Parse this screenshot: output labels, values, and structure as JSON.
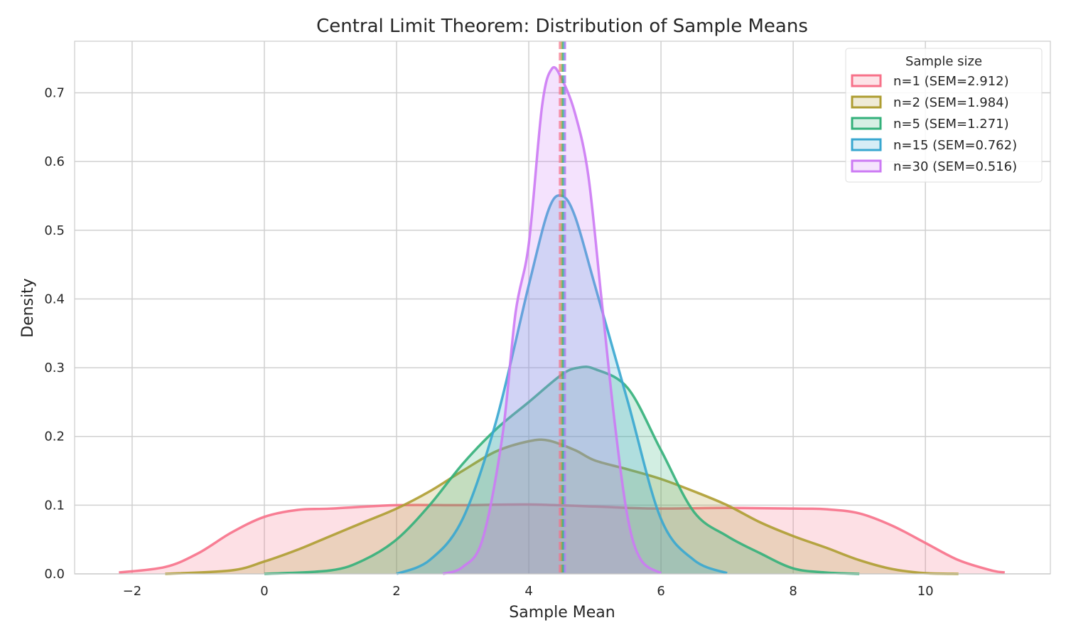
{
  "chart_data": {
    "type": "area",
    "title": "Central Limit Theorem: Distribution of Sample Means",
    "xlabel": "Sample Mean",
    "ylabel": "Density",
    "xlim": [
      -2.87,
      11.89
    ],
    "ylim": [
      0,
      0.775
    ],
    "xticks": [
      -2,
      0,
      2,
      4,
      6,
      8,
      10
    ],
    "xtick_labels": [
      "−2",
      "0",
      "2",
      "4",
      "6",
      "8",
      "10"
    ],
    "yticks": [
      0,
      0.1,
      0.2,
      0.3,
      0.4,
      0.5,
      0.6,
      0.7
    ],
    "ytick_labels": [
      "0.0",
      "0.1",
      "0.2",
      "0.3",
      "0.4",
      "0.5",
      "0.6",
      "0.7"
    ],
    "grid": true,
    "legend": {
      "title": "Sample size",
      "placement": "top-right"
    },
    "series": [
      {
        "name": "n=1 (SEM=2.912)",
        "color": "#f77189",
        "mean": 4.47,
        "x": [
          -2.2,
          -1.5,
          -1,
          -0.5,
          0,
          0.5,
          1,
          2,
          3,
          4,
          5,
          5.5,
          6,
          7,
          8,
          8.5,
          9,
          9.5,
          10,
          10.5,
          11,
          11.2
        ],
        "y": [
          0.002,
          0.01,
          0.03,
          0.06,
          0.083,
          0.093,
          0.095,
          0.1,
          0.1,
          0.101,
          0.098,
          0.096,
          0.095,
          0.096,
          0.095,
          0.094,
          0.088,
          0.07,
          0.045,
          0.02,
          0.005,
          0.002
        ]
      },
      {
        "name": "n=2 (SEM=1.984)",
        "color": "#ae9d31",
        "mean": 4.5,
        "x": [
          -1.5,
          -0.5,
          0,
          0.5,
          1,
          1.5,
          2,
          2.5,
          3,
          3.5,
          4,
          4.3,
          4.7,
          5,
          5.5,
          6,
          6.5,
          7,
          7.5,
          8,
          8.5,
          9,
          9.5,
          10,
          10.5
        ],
        "y": [
          0,
          0.005,
          0.018,
          0.035,
          0.055,
          0.075,
          0.095,
          0.12,
          0.15,
          0.178,
          0.193,
          0.194,
          0.18,
          0.165,
          0.152,
          0.138,
          0.12,
          0.1,
          0.075,
          0.055,
          0.038,
          0.02,
          0.007,
          0.001,
          0
        ]
      },
      {
        "name": "n=5 (SEM=1.271)",
        "color": "#33b07a",
        "mean": 4.52,
        "x": [
          0,
          1,
          1.5,
          2,
          2.5,
          3,
          3.5,
          4,
          4.5,
          4.75,
          5,
          5.5,
          6,
          6.5,
          7,
          7.5,
          8,
          8.5,
          9
        ],
        "y": [
          0,
          0.005,
          0.02,
          0.05,
          0.1,
          0.16,
          0.21,
          0.25,
          0.29,
          0.3,
          0.298,
          0.27,
          0.18,
          0.09,
          0.055,
          0.03,
          0.008,
          0.002,
          0
        ]
      },
      {
        "name": "n=15 (SEM=0.762)",
        "color": "#38a7d0",
        "mean": 4.54,
        "x": [
          2,
          2.5,
          3,
          3.5,
          4,
          4.3,
          4.5,
          4.7,
          5,
          5.5,
          6,
          6.5,
          7
        ],
        "y": [
          0,
          0.02,
          0.08,
          0.22,
          0.42,
          0.53,
          0.55,
          0.52,
          0.42,
          0.25,
          0.08,
          0.02,
          0.001
        ]
      },
      {
        "name": "n=30 (SEM=0.516)",
        "color": "#cc7af4",
        "mean": 4.55,
        "x": [
          2.7,
          3,
          3.3,
          3.6,
          3.8,
          4,
          4.2,
          4.35,
          4.5,
          4.7,
          4.9,
          5.1,
          5.3,
          5.5,
          5.7,
          6
        ],
        "y": [
          0,
          0.01,
          0.05,
          0.2,
          0.38,
          0.48,
          0.68,
          0.735,
          0.72,
          0.67,
          0.58,
          0.4,
          0.22,
          0.08,
          0.02,
          0.001
        ]
      }
    ]
  }
}
